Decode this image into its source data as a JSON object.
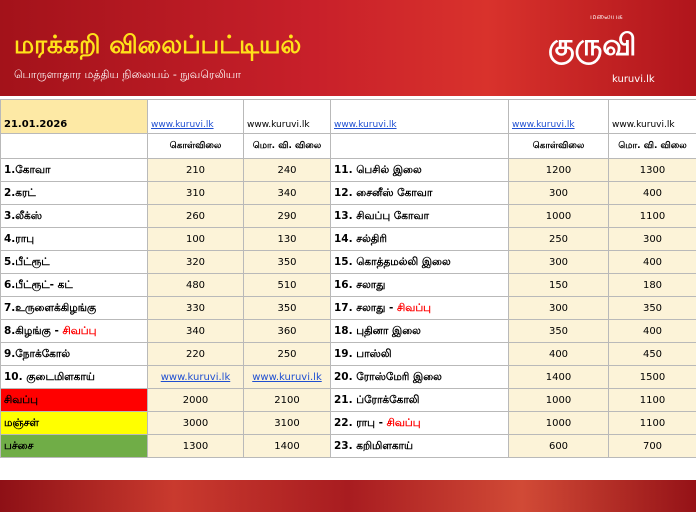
{
  "header": {
    "title": "மரக்கறி விலைப்பட்டியல்",
    "subtitle": "பொருளாதார மத்திய நிலையம் - நுவரெலியா",
    "logo_tag": "மலையக",
    "logo": "குருவி",
    "logo_site": "kuruvi.lk"
  },
  "table": {
    "date_row": [
      "21.01.2026",
      "www.kuruvi.lk",
      "www.kuruvi.lk",
      "www.kuruvi.lk",
      "www.kuruvi.lk",
      "www.kuruvi.lk"
    ],
    "link_color": "#1f4fd1",
    "columns": [
      "கொள்விலை",
      "மொ. வி. விலை"
    ],
    "rows": [
      {
        "left": {
          "name": "1.கோவா",
          "buy": 210,
          "sell": 240
        },
        "right": {
          "name": "11. பெசில் இலை",
          "buy": 1200,
          "sell": 1300
        }
      },
      {
        "left": {
          "name": "2.கரட்",
          "buy": 310,
          "sell": 340
        },
        "right": {
          "name": "12. சைனீஸ் கோவா",
          "buy": 300,
          "sell": 400
        }
      },
      {
        "left": {
          "name": "3.லீக்ஸ்",
          "buy": 260,
          "sell": 290
        },
        "right": {
          "name": "13. சிவப்பு கோவா",
          "buy": 1000,
          "sell": 1100
        }
      },
      {
        "left": {
          "name": "4.ராபு",
          "buy": 100,
          "sell": 130
        },
        "right": {
          "name": "14. சல்திரி",
          "buy": 250,
          "sell": 300
        }
      },
      {
        "left": {
          "name": "5.பீட்ரூட்",
          "buy": 320,
          "sell": 350
        },
        "right": {
          "name": "15. கொத்தமல்லி இலை",
          "buy": 300,
          "sell": 400
        }
      },
      {
        "left": {
          "name": "6.பீட்ரூட்- கட்",
          "buy": 480,
          "sell": 510
        },
        "right": {
          "name": "16. சலாது",
          "buy": 150,
          "sell": 180
        }
      },
      {
        "left": {
          "name": "7.உருளைக்கிழங்கு",
          "buy": 330,
          "sell": 350
        },
        "right": {
          "name": "17. சலாது - ",
          "accent": "சிவப்பு",
          "buy": 300,
          "sell": 350
        }
      },
      {
        "left": {
          "name": "8.கிழங்கு - ",
          "accent": "சிவப்பு",
          "buy": 340,
          "sell": 360
        },
        "right": {
          "name": "18. புதினா இலை",
          "buy": 350,
          "sell": 400
        }
      },
      {
        "left": {
          "name": "9.நோக்கோல்",
          "buy": 220,
          "sell": 250
        },
        "right": {
          "name": "19. பாஸ்லி",
          "buy": 400,
          "sell": 450
        }
      },
      {
        "left": {
          "name": "10. குடைமிளகாய்",
          "buy": "www.kuruvi.lk",
          "sell": "www.kuruvi.lk"
        },
        "right": {
          "name": "20. ரோஸ்மேரி இலை",
          "buy": 1400,
          "sell": 1500
        }
      },
      {
        "left": {
          "name": "சிவப்பு",
          "color": "#ff0000",
          "buy": 2000,
          "sell": 2100
        },
        "right": {
          "name": "21. ப்ரோக்கோலி",
          "buy": 1000,
          "sell": 1100
        }
      },
      {
        "left": {
          "name": "மஞ்சள்",
          "color": "#ffff00",
          "buy": 3000,
          "sell": 3100
        },
        "right": {
          "name": "22. ராபு - ",
          "accent": "சிவப்பு",
          "buy": 1000,
          "sell": 1100
        }
      },
      {
        "left": {
          "name": "பச்சை",
          "color": "#70ad47",
          "buy": 1300,
          "sell": 1400
        },
        "right": {
          "name": "23. கறிமிளகாய்",
          "buy": 600,
          "sell": 700
        }
      }
    ]
  }
}
